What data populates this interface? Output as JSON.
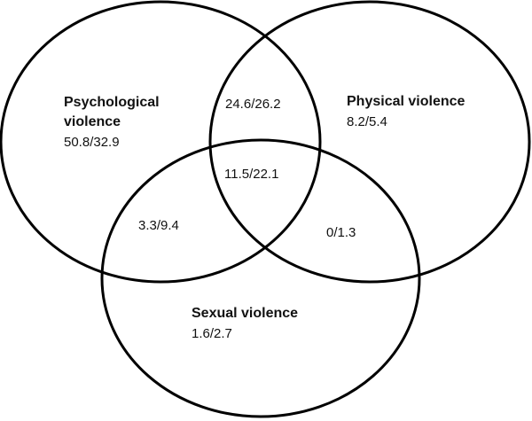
{
  "sets": {
    "psychological": {
      "label_line1": "Psychological",
      "label_line2": "violence",
      "value": "50.8/32.9"
    },
    "physical": {
      "label": "Physical violence",
      "value": "8.2/5.4"
    },
    "sexual": {
      "label": "Sexual violence",
      "value": "1.6/2.7"
    }
  },
  "intersections": {
    "psychological_physical": "24.6/26.2",
    "all_three": "11.5/22.1",
    "psychological_sexual": "3.3/9.4",
    "physical_sexual": "0/1.3"
  },
  "colors": {
    "stroke": "#000000",
    "text": "#111111",
    "background": "#ffffff"
  }
}
